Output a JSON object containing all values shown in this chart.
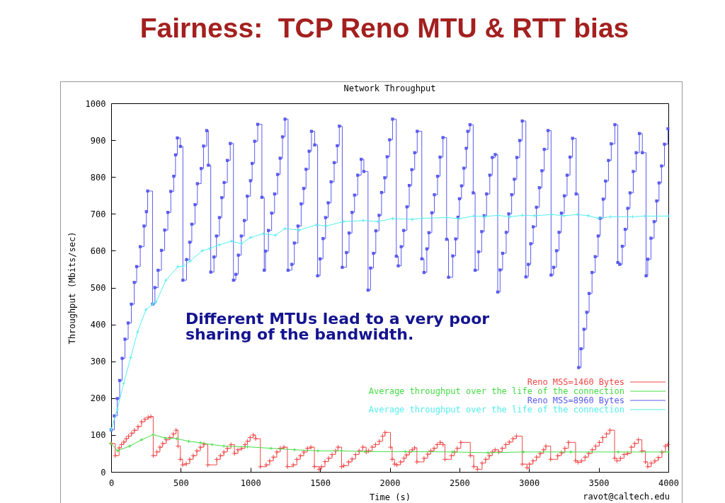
{
  "chart_data": {
    "type": "line",
    "title": "Fairness:  TCP Reno MTU & RTT bias",
    "subtitle": "Network Throughput",
    "xlabel": "Time (s)",
    "ylabel": "Throughput (Mbits/sec)",
    "annotations": [
      "Different MTUs lead to a very poor sharing of the bandwidth.",
      "ravot@caltech.edu"
    ],
    "xlim": [
      0,
      4000
    ],
    "xticks": [
      0,
      500,
      1000,
      1500,
      2000,
      2500,
      3000,
      3500,
      4000
    ],
    "ylim": [
      0,
      1000
    ],
    "yticks": [
      0,
      100,
      200,
      300,
      400,
      500,
      600,
      700,
      800,
      900,
      1000
    ],
    "legend": "bottom right",
    "series": [
      {
        "name": "Reno MSS=1460 Bytes",
        "type": "step",
        "color": "#f04848",
        "marker": "cross",
        "x": [
          0,
          29,
          57,
          74,
          91,
          108,
          125,
          147,
          167,
          193,
          218,
          243,
          265,
          285,
          302,
          328,
          350,
          370,
          395,
          421,
          446,
          466,
          480,
          497,
          513,
          539,
          564,
          589,
          615,
          640,
          665,
          694,
          758,
          784,
          809,
          834,
          860,
          885,
          910,
          936,
          961,
          978,
          998,
          1020,
          1037,
          1071,
          1113,
          1138,
          1164,
          1189,
          1214,
          1240,
          1265,
          1307,
          1333,
          1358,
          1383,
          1409,
          1434,
          1459,
          1493,
          1510,
          1535,
          1561,
          1586,
          1611,
          1628,
          1654,
          1670,
          1704,
          1729,
          1755,
          1780,
          1806,
          1831,
          1848,
          1873,
          1898,
          1924,
          1949,
          1966,
          2005,
          2017,
          2034,
          2051,
          2077,
          2102,
          2119,
          2141,
          2161,
          2178,
          2195,
          2246,
          2272,
          2294,
          2318,
          2340,
          2362,
          2382,
          2396,
          2442,
          2464,
          2484,
          2510,
          2578,
          2603,
          2629,
          2663,
          2688,
          2714,
          2736,
          2756,
          2782,
          2807,
          2833,
          2858,
          2884,
          2909,
          2951,
          2985,
          3002,
          3028,
          3053,
          3079,
          3104,
          3121,
          3155,
          3206,
          3232,
          3257,
          3283,
          3334,
          3351,
          3376,
          3402,
          3427,
          3453,
          3478,
          3504,
          3529,
          3555,
          3580,
          3614,
          3631,
          3656,
          3682,
          3707,
          3733,
          3758,
          3784,
          3810,
          3835,
          3852,
          3877,
          3903,
          3928,
          3954,
          3979,
          3996
        ],
        "values": [
          77,
          44,
          65,
          74,
          81,
          90,
          97,
          105,
          113,
          123,
          136,
          143,
          148,
          150,
          44,
          54,
          67,
          77,
          87,
          93,
          103,
          113,
          70,
          34,
          19,
          22,
          34,
          44,
          57,
          67,
          75,
          19,
          34,
          44,
          54,
          64,
          74,
          50,
          60,
          64,
          74,
          83,
          93,
          100,
          90,
          14,
          19,
          30,
          40,
          54,
          64,
          67,
          14,
          19,
          34,
          44,
          54,
          64,
          67,
          14,
          7,
          14,
          28,
          37,
          47,
          57,
          67,
          14,
          17,
          27,
          35,
          47,
          57,
          67,
          54,
          57,
          67,
          74,
          83,
          97,
          107,
          67,
          34,
          21,
          19,
          27,
          37,
          46,
          54,
          60,
          65,
          27,
          37,
          48,
          57,
          64,
          74,
          80,
          74,
          34,
          44,
          54,
          64,
          80,
          44,
          14,
          7,
          24,
          34,
          44,
          54,
          60,
          54,
          64,
          74,
          81,
          90,
          97,
          21,
          11,
          21,
          30,
          40,
          50,
          60,
          70,
          34,
          44,
          52,
          64,
          80,
          30,
          26,
          30,
          40,
          50,
          60,
          70,
          80,
          93,
          103,
          113,
          37,
          30,
          37,
          47,
          50,
          67,
          77,
          87,
          57,
          27,
          14,
          24,
          30,
          39,
          54,
          70,
          74
        ]
      },
      {
        "name": "Average throughput over the life of the connection",
        "type": "line",
        "color": "#44dd44",
        "marker": "cross",
        "x": [
          0,
          46,
          133,
          218,
          302,
          387,
          471,
          556,
          640,
          725,
          809,
          978,
          1147,
          1316,
          1485,
          1654,
          1822,
          2110,
          2450,
          2705,
          2960,
          3300,
          3640,
          4000
        ],
        "values": [
          77,
          57,
          70,
          87,
          101,
          92,
          90,
          83,
          79,
          74,
          70,
          68,
          64,
          60,
          57,
          57,
          55,
          55,
          54,
          52,
          54,
          54,
          54,
          54
        ]
      },
      {
        "name": "Reno MSS=8960 Bytes",
        "type": "step",
        "color": "#5a5aee",
        "marker": "square",
        "x": [
          0,
          23,
          44,
          61,
          79,
          99,
          122,
          145,
          166,
          183,
          209,
          236,
          253,
          262,
          297,
          314,
          337,
          361,
          384,
          407,
          428,
          449,
          462,
          475,
          497,
          515,
          541,
          564,
          579,
          602,
          619,
          646,
          663,
          686,
          698,
          715,
          738,
          756,
          777,
          794,
          811,
          834,
          855,
          878,
          895,
          913,
          934,
          956,
          977,
          1000,
          1012,
          1030,
          1052,
          1082,
          1099,
          1108,
          1129,
          1152,
          1173,
          1195,
          1213,
          1230,
          1248,
          1270,
          1297,
          1315,
          1341,
          1364,
          1382,
          1399,
          1421,
          1438,
          1461,
          1482,
          1500,
          1521,
          1539,
          1558,
          1579,
          1601,
          1623,
          1638,
          1659,
          1689,
          1708,
          1729,
          1747,
          1770,
          1795,
          1814,
          1844,
          1862,
          1883,
          1900,
          1923,
          1941,
          1964,
          1981,
          1999,
          2020,
          2047,
          2061,
          2082,
          2100,
          2123,
          2140,
          2158,
          2179,
          2197,
          2230,
          2246,
          2266,
          2281,
          2302,
          2320,
          2343,
          2361,
          2382,
          2408,
          2422,
          2452,
          2473,
          2490,
          2500,
          2515,
          2532,
          2549,
          2560,
          2576,
          2599,
          2613,
          2637,
          2660,
          2678,
          2695,
          2718,
          2736,
          2757,
          2775,
          2792,
          2810,
          2836,
          2854,
          2875,
          2894,
          2912,
          2933,
          2951,
          2977,
          2995,
          3012,
          3030,
          3053,
          3074,
          3092,
          3109,
          3136,
          3158,
          3176,
          3197,
          3215,
          3232,
          3253,
          3273,
          3294,
          3312,
          3338,
          3356,
          3373,
          3394,
          3414,
          3431,
          3452,
          3475,
          3496,
          3511,
          3532,
          3549,
          3570,
          3590,
          3616,
          3637,
          3651,
          3669,
          3690,
          3708,
          3725,
          3748,
          3769,
          3792,
          3813,
          3840,
          3852,
          3875,
          3898,
          3916,
          3933,
          3951,
          3972,
          3997
        ],
        "values": [
          114,
          152,
          199,
          248,
          308,
          360,
          404,
          455,
          514,
          557,
          611,
          667,
          706,
          762,
          455,
          500,
          547,
          601,
          656,
          704,
          761,
          802,
          860,
          906,
          883,
          520,
          576,
          623,
          672,
          725,
          782,
          823,
          884,
          926,
          832,
          542,
          583,
          640,
          690,
          744,
          785,
          845,
          891,
          520,
          536,
          588,
          640,
          682,
          748,
          790,
          837,
          897,
          943,
          745,
          547,
          599,
          655,
          702,
          754,
          807,
          851,
          909,
          957,
          547,
          563,
          621,
          667,
          727,
          769,
          821,
          870,
          924,
          887,
          532,
          578,
          633,
          690,
          730,
          787,
          839,
          885,
          938,
          555,
          595,
          648,
          704,
          751,
          805,
          848,
          815,
          493,
          553,
          593,
          654,
          696,
          758,
          798,
          855,
          901,
          957,
          585,
          559,
          611,
          655,
          719,
          777,
          820,
          866,
          924,
          578,
          541,
          605,
          649,
          703,
          752,
          802,
          854,
          907,
          631,
          528,
          586,
          632,
          691,
          741,
          776,
          824,
          878,
          924,
          942,
          757,
          547,
          597,
          652,
          695,
          754,
          805,
          853,
          861,
          488,
          548,
          593,
          650,
          700,
          752,
          794,
          853,
          899,
          952,
          529,
          563,
          619,
          665,
          718,
          771,
          817,
          875,
          926,
          534,
          555,
          600,
          650,
          702,
          749,
          805,
          854,
          905,
          754,
          283,
          334,
          387,
          433,
          484,
          541,
          584,
          640,
          688,
          740,
          789,
          845,
          890,
          942,
          568,
          563,
          612,
          658,
          715,
          757,
          815,
          866,
          918,
          866,
          532,
          577,
          634,
          679,
          735,
          784,
          830,
          889,
          931
        ]
      },
      {
        "name": "Average throughput over the life of the connection",
        "type": "line",
        "color": "#55eeee",
        "marker": "cross",
        "x": [
          0,
          44,
          90,
          140,
          190,
          250,
          297,
          323,
          393,
          480,
          515,
          567,
          654,
          707,
          777,
          864,
          934,
          1003,
          1091,
          1178,
          1248,
          1350,
          1474,
          1544,
          1668,
          1809,
          1914,
          2020,
          2161,
          2232,
          2408,
          2497,
          2602,
          2687,
          2775,
          2863,
          2951,
          3039,
          3162,
          3250,
          3347,
          3426,
          3496,
          3585,
          3743,
          3831,
          4000
        ],
        "values": [
          114,
          170,
          240,
          310,
          380,
          440,
          455,
          461,
          520,
          557,
          557,
          572,
          600,
          606,
          616,
          626,
          619,
          636,
          646,
          642,
          660,
          656,
          670,
          667,
          679,
          682,
          679,
          687,
          685,
          688,
          690,
          687,
          694,
          693,
          696,
          692,
          696,
          695,
          698,
          695,
          698,
          695,
          688,
          692,
          692,
          694,
          694
        ]
      }
    ]
  }
}
